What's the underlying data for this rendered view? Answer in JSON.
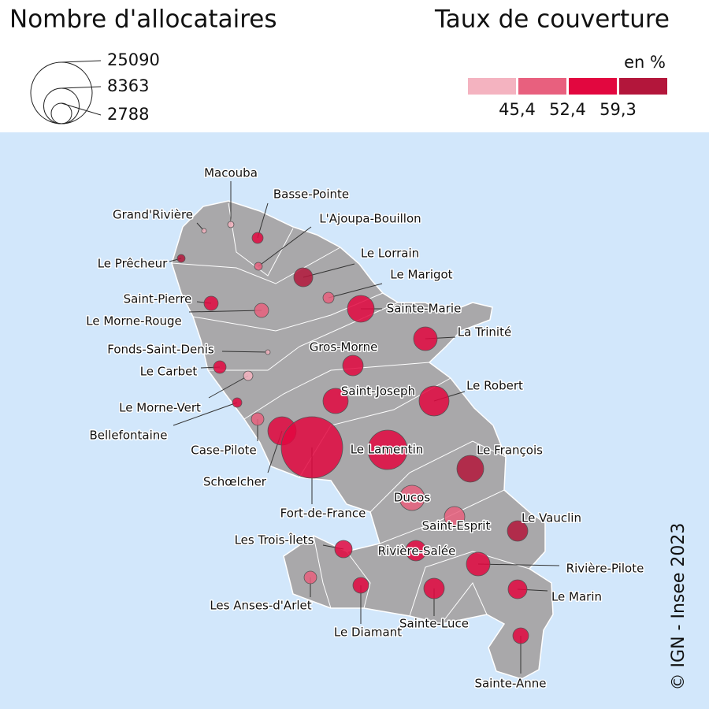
{
  "legend": {
    "size": {
      "title": "Nombre d'allocataires",
      "values": [
        25090,
        8363,
        2788
      ]
    },
    "color": {
      "title": "Taux de couverture",
      "unit": "en %",
      "colors": [
        "#f4b3c0",
        "#e8607e",
        "#e2073f",
        "#b3163b"
      ],
      "ticks": [
        {
          "value": 45.4,
          "label": "45,4"
        },
        {
          "value": 52.4,
          "label": "52,4"
        },
        {
          "value": 59.3,
          "label": "59,3"
        }
      ]
    }
  },
  "communes": [
    {
      "name": "Macouba",
      "allocataires": 260,
      "class": 0
    },
    {
      "name": "Basse-Pointe",
      "allocataires": 810,
      "class": 2
    },
    {
      "name": "Grand'Rivière",
      "allocataires": 150,
      "class": 0
    },
    {
      "name": "L'Ajoupa-Bouillon",
      "allocataires": 410,
      "class": 1
    },
    {
      "name": "Le Prêcheur",
      "allocataires": 410,
      "class": 3
    },
    {
      "name": "Le Lorrain",
      "allocataires": 2380,
      "class": 3
    },
    {
      "name": "Le Marigot",
      "allocataires": 810,
      "class": 1
    },
    {
      "name": "Saint-Pierre",
      "allocataires": 1330,
      "class": 2
    },
    {
      "name": "Le Morne-Rouge",
      "allocataires": 1330,
      "class": 1
    },
    {
      "name": "Sainte-Marie",
      "allocataires": 4770,
      "class": 2
    },
    {
      "name": "La Trinité",
      "allocataires": 3710,
      "class": 2
    },
    {
      "name": "Fonds-Saint-Denis",
      "allocataires": 150,
      "class": 0
    },
    {
      "name": "Gros-Morne",
      "allocataires": 2790,
      "class": 2
    },
    {
      "name": "Le Carbet",
      "allocataires": 1050,
      "class": 2
    },
    {
      "name": "Le Morne-Vert",
      "allocataires": 590,
      "class": 0
    },
    {
      "name": "Saint-Joseph",
      "allocataires": 4220,
      "class": 2
    },
    {
      "name": "Le Robert",
      "allocataires": 5950,
      "class": 2
    },
    {
      "name": "Bellefontaine",
      "allocataires": 590,
      "class": 2
    },
    {
      "name": "Case-Pilote",
      "allocataires": 1050,
      "class": 1
    },
    {
      "name": "Schœlcher",
      "allocataires": 5340,
      "class": 2
    },
    {
      "name": "Fort-de-France",
      "allocataires": 25090,
      "class": 2
    },
    {
      "name": "Le Lamentin",
      "allocataires": 10300,
      "class": 2
    },
    {
      "name": "Le François",
      "allocataires": 4770,
      "class": 3
    },
    {
      "name": "Ducos",
      "allocataires": 4220,
      "class": 1
    },
    {
      "name": "Saint-Esprit",
      "allocataires": 2790,
      "class": 1
    },
    {
      "name": "Le Vauclin",
      "allocataires": 2790,
      "class": 3
    },
    {
      "name": "Les Trois-Îlets",
      "allocataires": 2000,
      "class": 2
    },
    {
      "name": "Rivière-Salée",
      "allocataires": 2790,
      "class": 2
    },
    {
      "name": "Rivière-Pilote",
      "allocataires": 3710,
      "class": 2
    },
    {
      "name": "Les Anses-d'Arlet",
      "allocataires": 1050,
      "class": 1
    },
    {
      "name": "Le Diamant",
      "allocataires": 1650,
      "class": 2
    },
    {
      "name": "Sainte-Luce",
      "allocataires": 2790,
      "class": 2
    },
    {
      "name": "Le Marin",
      "allocataires": 2380,
      "class": 2
    },
    {
      "name": "Sainte-Anne",
      "allocataires": 1650,
      "class": 2
    }
  ],
  "credit": "© IGN - Insee 2023"
}
